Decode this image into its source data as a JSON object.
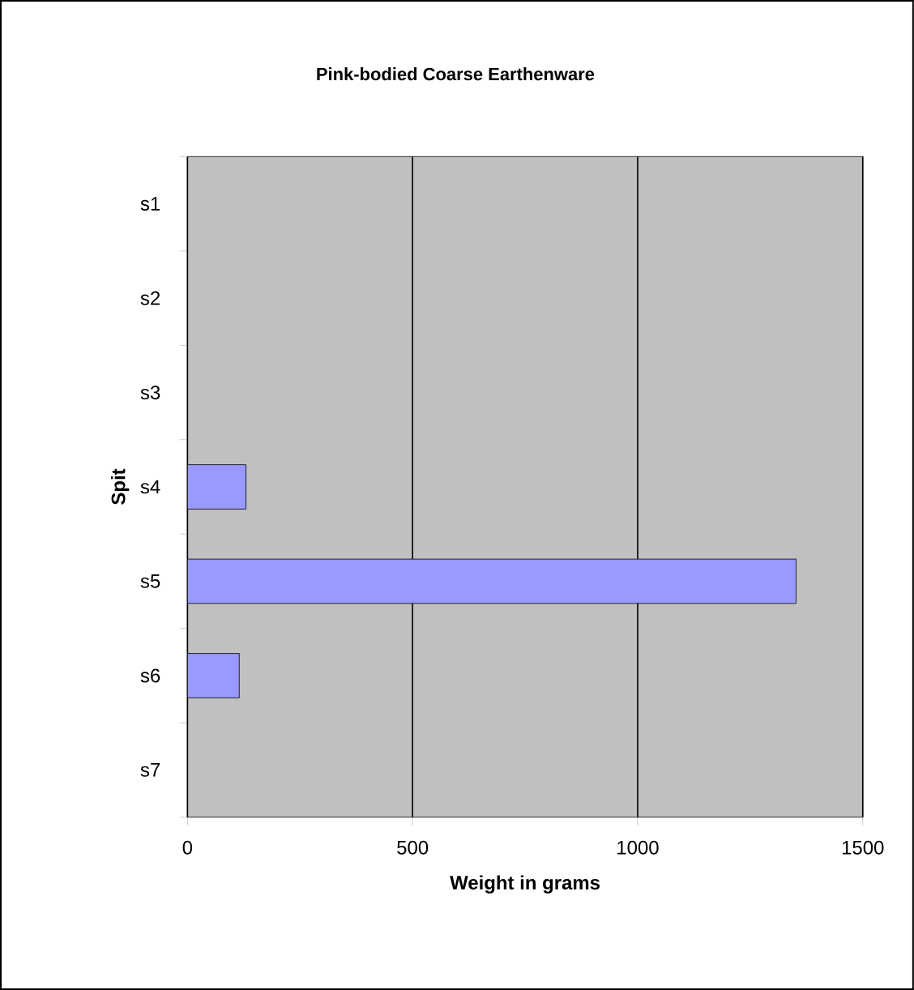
{
  "chart_data": {
    "type": "bar",
    "orientation": "horizontal",
    "title": "Pink-bodied Coarse Earthenware",
    "xlabel": "Weight in grams",
    "ylabel": "Spit",
    "categories": [
      "s1",
      "s2",
      "s3",
      "s4",
      "s5",
      "s6",
      "s7"
    ],
    "values": [
      null,
      null,
      null,
      130,
      1352,
      115,
      null
    ],
    "color": "#9999ff",
    "xlim": [
      0,
      1500
    ],
    "xticks": [
      0,
      500,
      1000,
      1500
    ],
    "grid": "x"
  }
}
